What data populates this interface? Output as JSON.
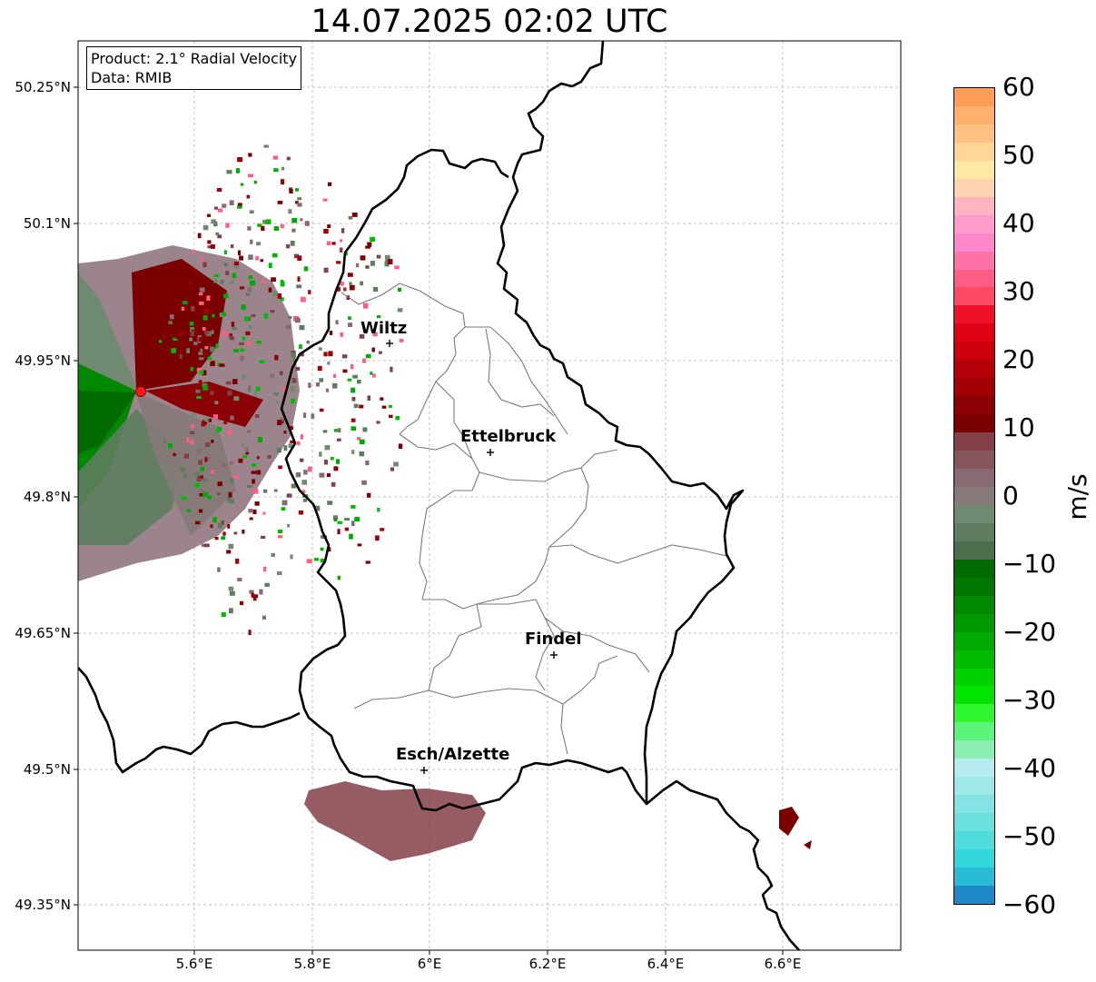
{
  "title": "14.07.2025 02:02 UTC",
  "info": {
    "product": "Product: 2.1° Radial Velocity",
    "data": "Data: RMIB"
  },
  "axes": {
    "y_ticks": [
      "50.25°N",
      "50.1°N",
      "49.95°N",
      "49.8°N",
      "49.65°N",
      "49.5°N",
      "49.35°N"
    ],
    "x_ticks": [
      "5.6°E",
      "5.8°E",
      "6°E",
      "6.2°E",
      "6.4°E",
      "6.6°E"
    ]
  },
  "cities": [
    {
      "name": "Wiltz"
    },
    {
      "name": "Ettelbruck"
    },
    {
      "name": "Findel"
    },
    {
      "name": "Esch/Alzette"
    }
  ],
  "colorbar": {
    "label": "m/s",
    "ticks": [
      "60",
      "50",
      "40",
      "30",
      "20",
      "10",
      "0",
      "−10",
      "−20",
      "−30",
      "−40",
      "−50",
      "−60"
    ],
    "range": [
      -60,
      60
    ],
    "colors_top_to_bottom": [
      "#ff9c55",
      "#ffb06a",
      "#ffc283",
      "#ffd696",
      "#ffe8a6",
      "#ffd3b0",
      "#ffb4c0",
      "#ff9ccd",
      "#ff86cc",
      "#ff73a8",
      "#ff5d83",
      "#ff4a66",
      "#f0102a",
      "#e00014",
      "#cc000c",
      "#b60008",
      "#a00006",
      "#8a0004",
      "#7a0000",
      "#844048",
      "#87565c",
      "#876a72",
      "#857a78",
      "#6f8a70",
      "#5e7d5e",
      "#4d6e4d",
      "#006a00",
      "#007800",
      "#008800",
      "#009800",
      "#00aa00",
      "#00bc00",
      "#00d000",
      "#00e400",
      "#30f830",
      "#5cf47a",
      "#8aefb0",
      "#b6ecef",
      "#9ee8e8",
      "#84e4e4",
      "#6ae0e0",
      "#50dcdc",
      "#30d8dc",
      "#28bcd6",
      "#1e88c8"
    ]
  }
}
